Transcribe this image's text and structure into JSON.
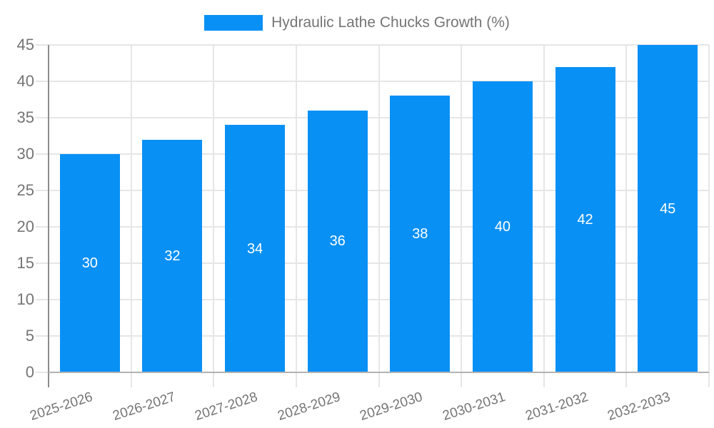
{
  "chart_data": {
    "type": "bar",
    "legend": "Hydraulic Lathe Chucks Growth (%)",
    "legend_position": "top-center",
    "categories": [
      "2025-2026",
      "2026-2027",
      "2027-2028",
      "2028-2029",
      "2029-2030",
      "2030-2031",
      "2031-2032",
      "2032-2033"
    ],
    "values": [
      30,
      32,
      34,
      36,
      38,
      40,
      42,
      45
    ],
    "value_labels": [
      "30",
      "32",
      "34",
      "36",
      "38",
      "40",
      "42",
      "45"
    ],
    "yticks": [
      0,
      5,
      10,
      15,
      20,
      25,
      30,
      35,
      40,
      45
    ],
    "ylim": [
      0,
      45
    ],
    "xlabel": "",
    "ylabel": "",
    "grid": true,
    "colors": {
      "bar": "#0990F5",
      "gridline": "#e6e6e6",
      "axis_y": "#8c8c8c",
      "axis_x": "#b3b3b3",
      "axis_text": "#757575",
      "value_label": "#ffffff",
      "background": "#ffffff"
    }
  }
}
